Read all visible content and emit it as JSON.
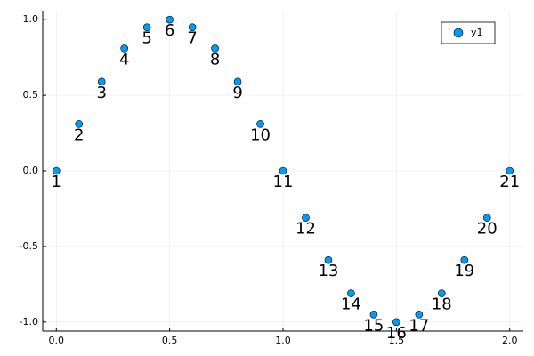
{
  "chart_data": {
    "type": "scatter",
    "series": [
      {
        "name": "y1",
        "color": "#009af9",
        "x": [
          0,
          0.1,
          0.2,
          0.3,
          0.4,
          0.5,
          0.6,
          0.7,
          0.8,
          0.9,
          1,
          1.1,
          1.2,
          1.3,
          1.4,
          1.5,
          1.6,
          1.7,
          1.8,
          1.9,
          2
        ],
        "values": [
          0,
          0.31,
          0.59,
          0.81,
          0.95,
          1,
          0.95,
          0.81,
          0.59,
          0.31,
          0,
          -0.31,
          -0.59,
          -0.81,
          -0.95,
          -1,
          -0.95,
          -0.81,
          -0.59,
          -0.31,
          0
        ],
        "annotations": [
          "1",
          "2",
          "3",
          "4",
          "5",
          "6",
          "7",
          "8",
          "9",
          "10",
          "11",
          "12",
          "13",
          "14",
          "15",
          "16",
          "17",
          "18",
          "19",
          "20",
          "21"
        ]
      }
    ],
    "xlim": [
      -0.06,
      2.06
    ],
    "ylim": [
      -1.06,
      1.06
    ],
    "xticks": [
      {
        "value": 0,
        "label": "0.0"
      },
      {
        "value": 0.5,
        "label": "0.5"
      },
      {
        "value": 1,
        "label": "1.0"
      },
      {
        "value": 1.5,
        "label": "1.5"
      },
      {
        "value": 2,
        "label": "2.0"
      }
    ],
    "yticks": [
      {
        "value": -1,
        "label": "-1.0"
      },
      {
        "value": -0.5,
        "label": "-0.5"
      },
      {
        "value": 0,
        "label": "0.0"
      },
      {
        "value": 0.5,
        "label": "0.5"
      },
      {
        "value": 1,
        "label": "1.0"
      }
    ],
    "grid": true,
    "legend": "top-right"
  }
}
